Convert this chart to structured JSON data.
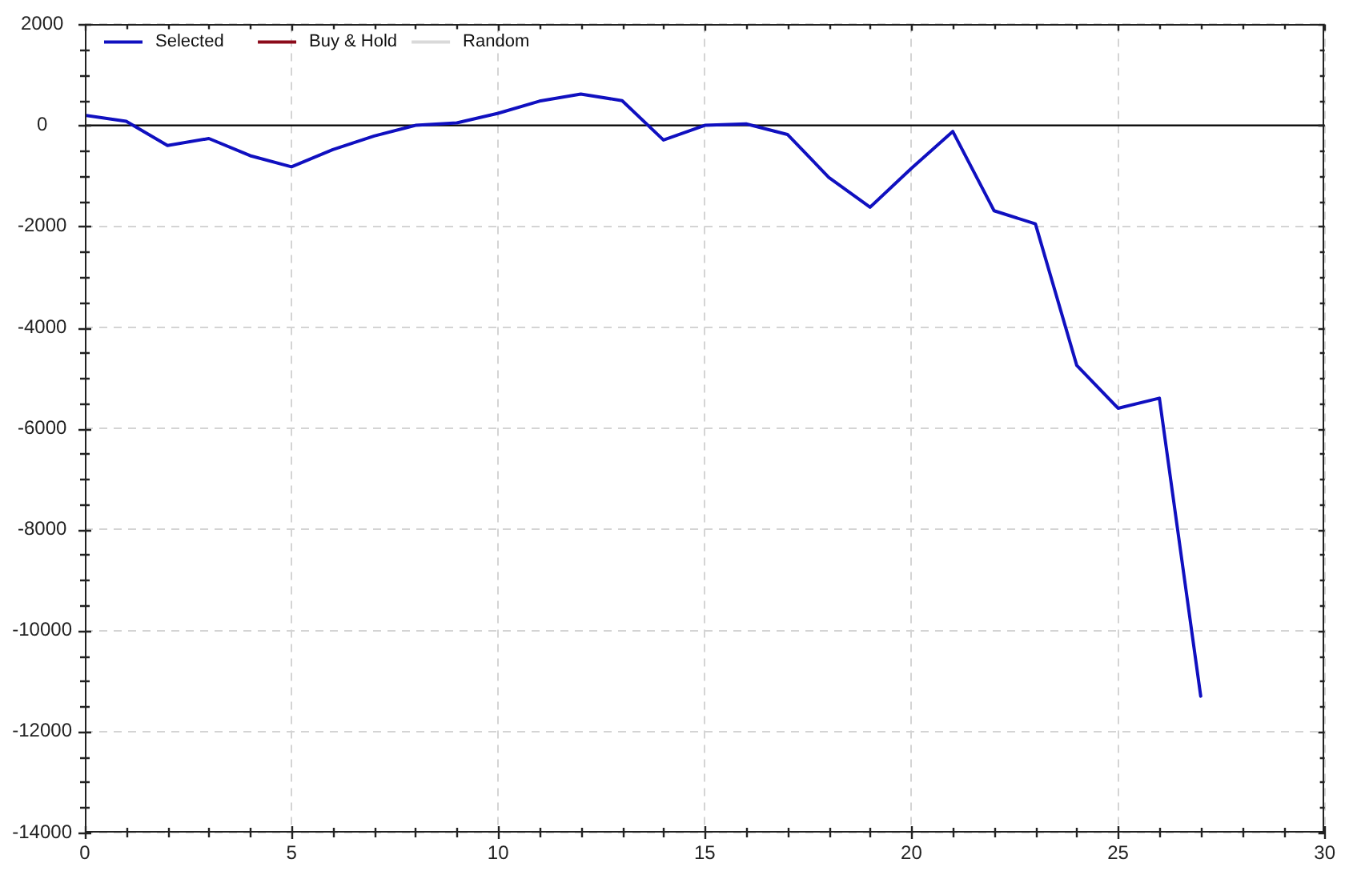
{
  "chart_data": {
    "type": "line",
    "x": [
      0,
      1,
      2,
      3,
      4,
      5,
      6,
      7,
      8,
      9,
      10,
      11,
      12,
      13,
      14,
      15,
      16,
      17,
      18,
      19,
      20,
      21,
      22,
      23,
      24,
      25,
      26,
      27
    ],
    "series": [
      {
        "name": "Selected",
        "color": "#1010c0",
        "values": [
          200,
          80,
          -400,
          -260,
          -600,
          -820,
          -480,
          -210,
          0,
          50,
          240,
          480,
          620,
          490,
          -290,
          0,
          30,
          -180,
          -1030,
          -1620,
          -850,
          -120,
          -1690,
          -1950,
          -4750,
          -5600,
          -5400,
          -11300
        ]
      },
      {
        "name": "Buy & Hold",
        "color": "#8b0a1a",
        "values": [
          null,
          null,
          null,
          null,
          null,
          null,
          null,
          null,
          null,
          null,
          null,
          null,
          null,
          null,
          null,
          null,
          null,
          null,
          null,
          null,
          null,
          null,
          null,
          null,
          null,
          null,
          null,
          null
        ]
      },
      {
        "name": "Random",
        "color": "#d9d9d9",
        "values": [
          null,
          null,
          null,
          null,
          null,
          null,
          null,
          null,
          null,
          null,
          null,
          null,
          null,
          null,
          null,
          null,
          null,
          null,
          null,
          null,
          null,
          null,
          null,
          null,
          null,
          null,
          null,
          null
        ]
      }
    ],
    "xlim": [
      0,
      30
    ],
    "xticks": [
      0,
      {
        "value": 1,
        "label": null
      },
      {
        "value": 2,
        "label": null
      },
      {
        "value": 3,
        "label": null
      },
      {
        "value": 4,
        "label": null
      },
      5,
      {
        "value": 6,
        "label": null
      },
      {
        "value": 7,
        "label": null
      },
      {
        "value": 8,
        "label": null
      },
      {
        "value": 9,
        "label": null
      },
      10,
      {
        "value": 11,
        "label": null
      },
      {
        "value": 12,
        "label": null
      },
      {
        "value": 13,
        "label": null
      },
      {
        "value": 14,
        "label": null
      },
      15,
      {
        "value": 16,
        "label": null
      },
      {
        "value": 17,
        "label": null
      },
      {
        "value": 18,
        "label": null
      },
      {
        "value": 19,
        "label": null
      },
      20,
      {
        "value": 21,
        "label": null
      },
      {
        "value": 22,
        "label": null
      },
      {
        "value": 23,
        "label": null
      },
      {
        "value": 24,
        "label": null
      },
      25,
      {
        "value": 26,
        "label": null
      },
      {
        "value": 27,
        "label": null
      },
      {
        "value": 28,
        "label": null
      },
      {
        "value": 29,
        "label": null
      },
      30
    ],
    "ylim": [
      -14000,
      2000
    ],
    "yticks": [
      -14000,
      {
        "value": -13500,
        "label": null
      },
      {
        "value": -13000,
        "label": null
      },
      {
        "value": -12500,
        "label": null
      },
      -12000,
      {
        "value": -11500,
        "label": null
      },
      {
        "value": -11000,
        "label": null
      },
      {
        "value": -10500,
        "label": null
      },
      -10000,
      {
        "value": -9500,
        "label": null
      },
      {
        "value": -9000,
        "label": null
      },
      {
        "value": -8500,
        "label": null
      },
      -8000,
      {
        "value": -7500,
        "label": null
      },
      {
        "value": -7000,
        "label": null
      },
      {
        "value": -6500,
        "label": null
      },
      -6000,
      {
        "value": -5500,
        "label": null
      },
      {
        "value": -5000,
        "label": null
      },
      {
        "value": -4500,
        "label": null
      },
      -4000,
      {
        "value": -3500,
        "label": null
      },
      {
        "value": -3000,
        "label": null
      },
      {
        "value": -2500,
        "label": null
      },
      -2000,
      {
        "value": -1500,
        "label": null
      },
      {
        "value": -1000,
        "label": null
      },
      {
        "value": -500,
        "label": null
      },
      0,
      {
        "value": 500,
        "label": null
      },
      {
        "value": 1000,
        "label": null
      },
      {
        "value": 1500,
        "label": null
      },
      2000
    ],
    "ref_lines": [
      {
        "axis": "y",
        "value": 0,
        "color": "#000000"
      }
    ],
    "grid": true,
    "legend": "top left",
    "marker": "none",
    "line_style": "solid"
  }
}
